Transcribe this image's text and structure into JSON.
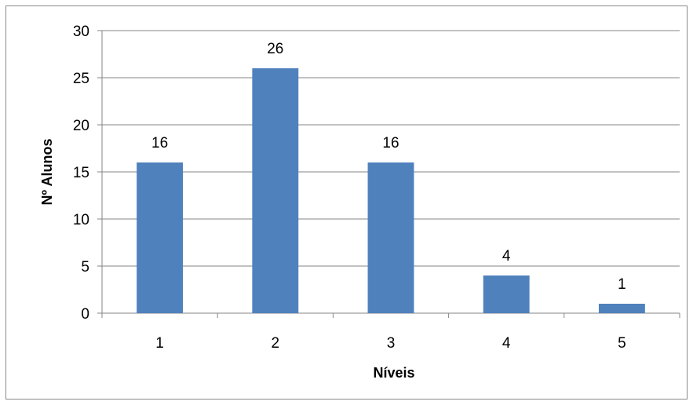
{
  "chart_data": {
    "type": "bar",
    "title": "",
    "xlabel": "Níveis",
    "ylabel": "Nº Alunos",
    "categories": [
      "1",
      "2",
      "3",
      "4",
      "5"
    ],
    "values": [
      16,
      26,
      16,
      4,
      1
    ],
    "data_labels": [
      "16",
      "26",
      "16",
      "4",
      "1"
    ],
    "ylim": [
      0,
      30
    ],
    "yticks": [
      "0",
      "5",
      "10",
      "15",
      "20",
      "25",
      "30"
    ],
    "grid": true,
    "legend": "none",
    "colors": {
      "bar": "#4f81bd",
      "grid": "#868686",
      "axis": "#868686",
      "border": "#8a8a8a"
    }
  }
}
